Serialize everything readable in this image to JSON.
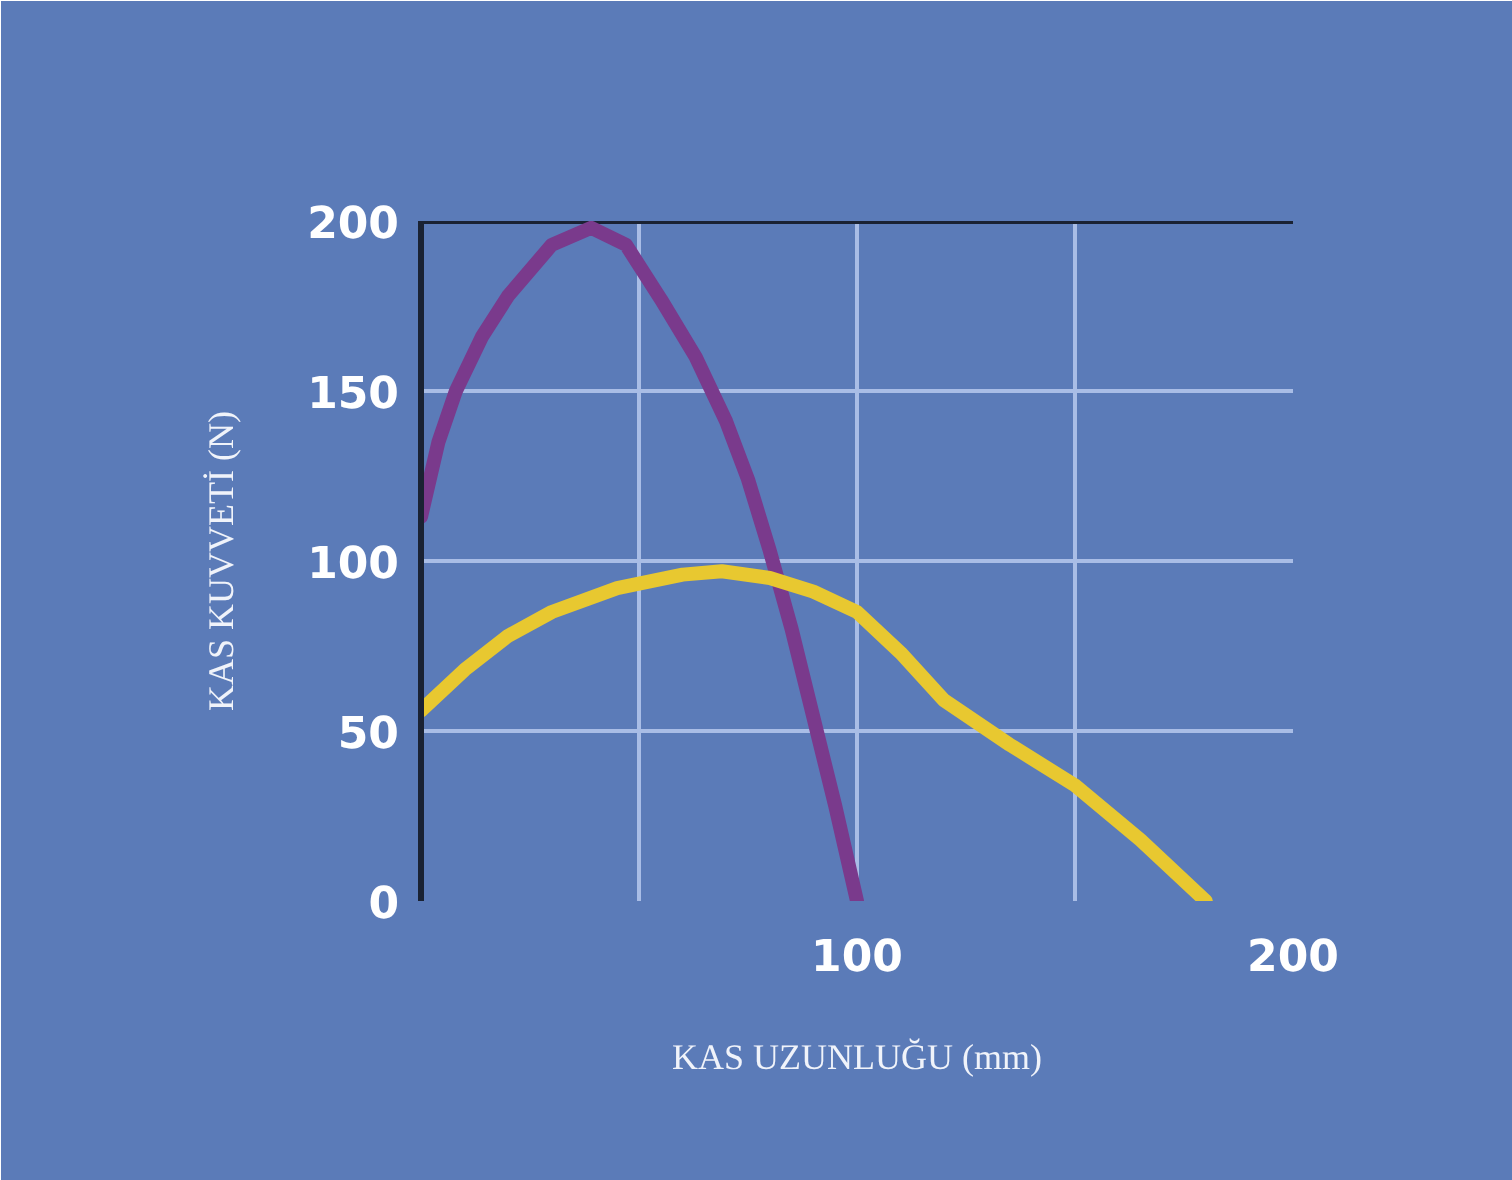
{
  "chart_data": {
    "type": "line",
    "xlabel": "KAS UZUNLUĞU (mm)",
    "ylabel": "KAS KUVVETİ (N)",
    "xlim": [
      0,
      200
    ],
    "ylim": [
      0,
      200
    ],
    "xticks": [
      {
        "value": 50,
        "label": null
      },
      100,
      {
        "value": 150,
        "label": null
      },
      200
    ],
    "yticks": [
      0,
      50,
      100,
      150,
      200
    ],
    "grid": true,
    "line_style": "solid",
    "marker": "none",
    "series": [
      {
        "color": "#7a3a8c",
        "x": [
          0,
          4,
          8,
          14,
          20,
          30,
          39,
          47,
          55,
          63,
          70,
          75,
          80,
          85,
          90,
          95,
          100
        ],
        "values": [
          113,
          135,
          150,
          166,
          178,
          193,
          198,
          193,
          177,
          160,
          141,
          124,
          103,
          80,
          54,
          28,
          0
        ]
      },
      {
        "color": "#e8c830",
        "x": [
          0,
          10,
          20,
          30,
          45,
          60,
          69,
          80,
          90,
          100,
          110,
          120,
          135,
          150,
          165,
          180
        ],
        "values": [
          56,
          68,
          78,
          85,
          92,
          96,
          97,
          95,
          91,
          85,
          73,
          59,
          46,
          34,
          18,
          0
        ]
      }
    ]
  }
}
